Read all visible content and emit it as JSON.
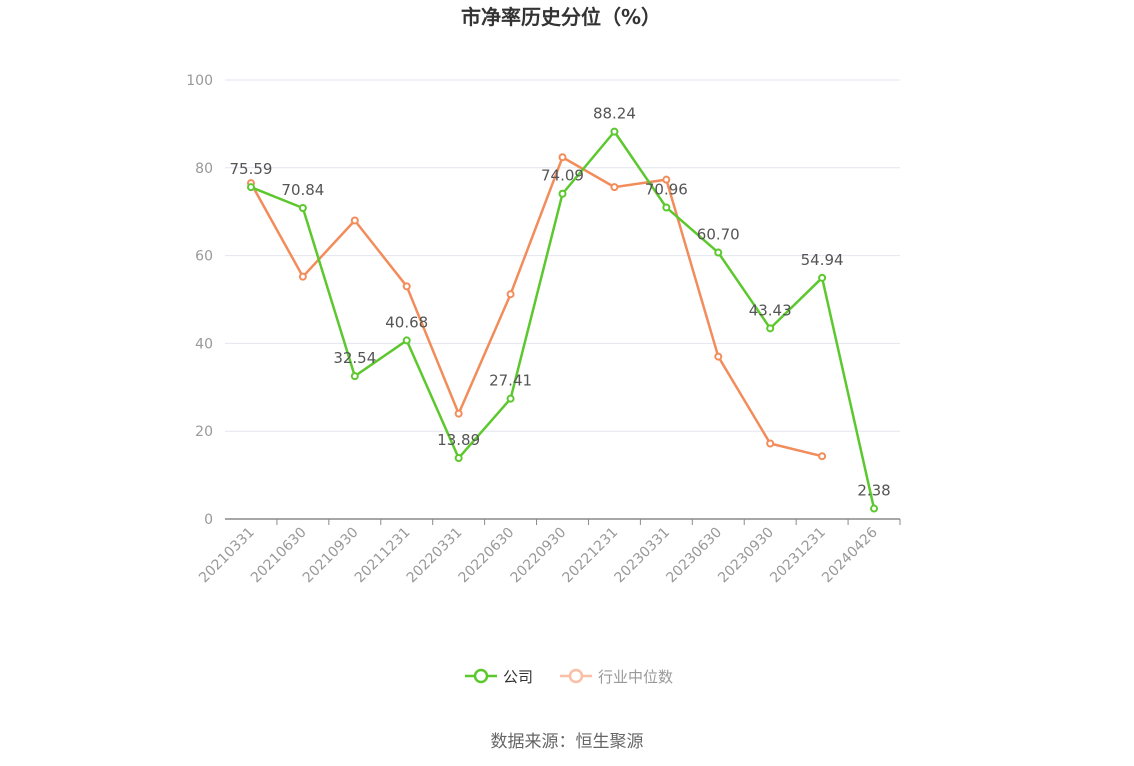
{
  "chart_data": {
    "type": "line",
    "title": "市净率历史分位（%）",
    "categories": [
      "20210331",
      "20210630",
      "20210930",
      "20211231",
      "20220331",
      "20220630",
      "20220930",
      "20221231",
      "20230331",
      "20230630",
      "20230930",
      "20231231",
      "20240426"
    ],
    "ylim": [
      0,
      100
    ],
    "yticks": [
      0,
      20,
      40,
      60,
      80,
      100
    ],
    "grid": true,
    "legend_position": "bottom",
    "series": [
      {
        "name": "公司",
        "color": "#5cc82e",
        "values": [
          75.59,
          70.84,
          32.54,
          40.68,
          13.89,
          27.41,
          74.09,
          88.24,
          70.96,
          60.7,
          43.43,
          54.94,
          2.38
        ],
        "labels": [
          "75.59",
          "70.84",
          "32.54",
          "40.68",
          "13.89",
          "27.41",
          "74.09",
          "88.24",
          "70.96",
          "60.70",
          "43.43",
          "54.94",
          "2.38"
        ]
      },
      {
        "name": "行业中位数",
        "color": "#f28c5a",
        "legend_color": "#f8bfa5",
        "values": [
          76.5,
          55.2,
          68.0,
          53.0,
          24.0,
          51.2,
          82.4,
          75.6,
          77.3,
          37.0,
          17.2,
          14.3,
          null
        ]
      }
    ]
  },
  "source_text": "数据来源：恒生聚源"
}
